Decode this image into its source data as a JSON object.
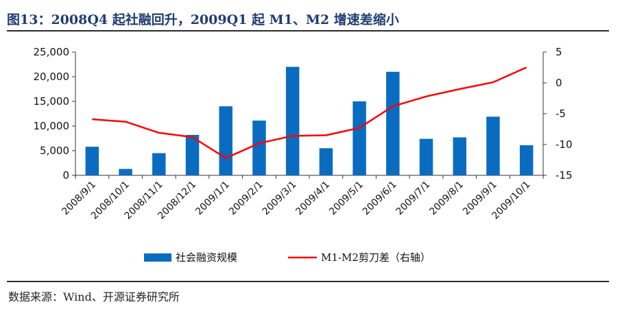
{
  "figure": {
    "title": "图13：2008Q4 起社融回升，2009Q1 起 M1、M2 增速差缩小",
    "source": "数据来源：Wind、开源证券研究所"
  },
  "colors": {
    "bar": "#0a6cc1",
    "line": "#ff0000",
    "title": "#1f3b73"
  },
  "chart_data": {
    "type": "bar",
    "categories": [
      "2008/9/1",
      "2008/10/1",
      "2008/11/1",
      "2008/12/1",
      "2009/1/1",
      "2009/2/1",
      "2009/3/1",
      "2009/4/1",
      "2009/5/1",
      "2009/6/1",
      "2009/7/1",
      "2009/8/1",
      "2009/9/1",
      "2009/10/1"
    ],
    "series": [
      {
        "name": "社会融资规模",
        "type": "bar",
        "axis": "left",
        "values": [
          5800,
          1300,
          4500,
          8200,
          14000,
          11100,
          22000,
          5500,
          15000,
          21000,
          7400,
          7700,
          11900,
          6100
        ]
      },
      {
        "name": "M1-M2剪刀差（右轴）",
        "type": "line",
        "axis": "right",
        "values": [
          -5.9,
          -6.3,
          -8.1,
          -8.8,
          -12.2,
          -9.8,
          -8.6,
          -8.5,
          -7.3,
          -3.8,
          -2.2,
          -1.0,
          0.1,
          2.5
        ]
      }
    ],
    "y_left": {
      "ylim": [
        0,
        25000
      ],
      "ticks": [
        0,
        5000,
        10000,
        15000,
        20000,
        25000
      ],
      "tick_labels": [
        "0",
        "5,000",
        "10,000",
        "15,000",
        "20,000",
        "25,000"
      ]
    },
    "y_right": {
      "ylim": [
        -15,
        5
      ],
      "ticks": [
        -15,
        -10,
        -5,
        0,
        5
      ],
      "tick_labels": [
        "-15",
        "-10",
        "-5",
        "0",
        "5"
      ]
    },
    "legend": {
      "position": "bottom"
    },
    "grid": false
  }
}
